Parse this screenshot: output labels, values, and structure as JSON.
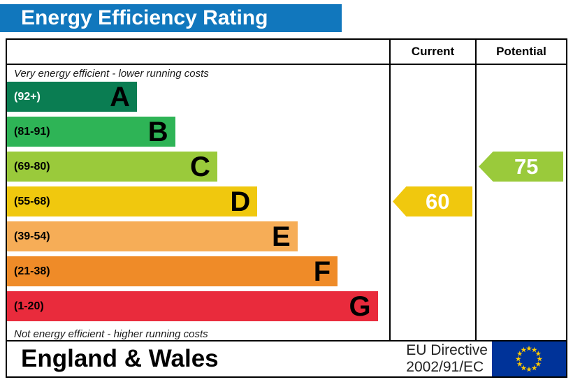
{
  "title": "Energy Efficiency Rating",
  "header": {
    "current": "Current",
    "potential": "Potential"
  },
  "notes": {
    "top": "Very energy efficient - lower running costs",
    "bottom": "Not energy efficient - higher running costs"
  },
  "bands": [
    {
      "letter": "A",
      "range": "(92+)",
      "color": "#0a7d52",
      "text_color": "#ffffff",
      "width_pct": 34
    },
    {
      "letter": "B",
      "range": "(81-91)",
      "color": "#2eb456",
      "text_color": "#000000",
      "width_pct": 44
    },
    {
      "letter": "C",
      "range": "(69-80)",
      "color": "#9aca3b",
      "text_color": "#000000",
      "width_pct": 55
    },
    {
      "letter": "D",
      "range": "(55-68)",
      "color": "#f0c80e",
      "text_color": "#000000",
      "width_pct": 65.5
    },
    {
      "letter": "E",
      "range": "(39-54)",
      "color": "#f6ad57",
      "text_color": "#000000",
      "width_pct": 76
    },
    {
      "letter": "F",
      "range": "(21-38)",
      "color": "#ef8b28",
      "text_color": "#000000",
      "width_pct": 86.5
    },
    {
      "letter": "G",
      "range": "(1-20)",
      "color": "#e92b3c",
      "text_color": "#000000",
      "width_pct": 97
    }
  ],
  "ratings": {
    "current": {
      "value": "60",
      "band_index": 3,
      "color": "#f0c80e"
    },
    "potential": {
      "value": "75",
      "band_index": 2,
      "color": "#9aca3b"
    }
  },
  "footer": {
    "region": "England & Wales",
    "directive": [
      "EU Directive",
      "2002/91/EC"
    ],
    "flag": {
      "background": "#003399",
      "star_color": "#ffcc00"
    }
  },
  "chart_data": {
    "type": "bar",
    "title": "Energy Efficiency Rating",
    "categories": [
      "A",
      "B",
      "C",
      "D",
      "E",
      "F",
      "G"
    ],
    "ranges": [
      "92+",
      "81-91",
      "69-80",
      "55-68",
      "39-54",
      "21-38",
      "1-20"
    ],
    "band_colors": [
      "#0a7d52",
      "#2eb456",
      "#9aca3b",
      "#f0c80e",
      "#f6ad57",
      "#ef8b28",
      "#e92b3c"
    ],
    "current": 60,
    "current_band": "D",
    "potential": 75,
    "potential_band": "C",
    "top_annotation": "Very energy efficient - lower running costs",
    "bottom_annotation": "Not energy efficient - higher running costs",
    "region": "England & Wales",
    "directive": "EU Directive 2002/91/EC"
  }
}
